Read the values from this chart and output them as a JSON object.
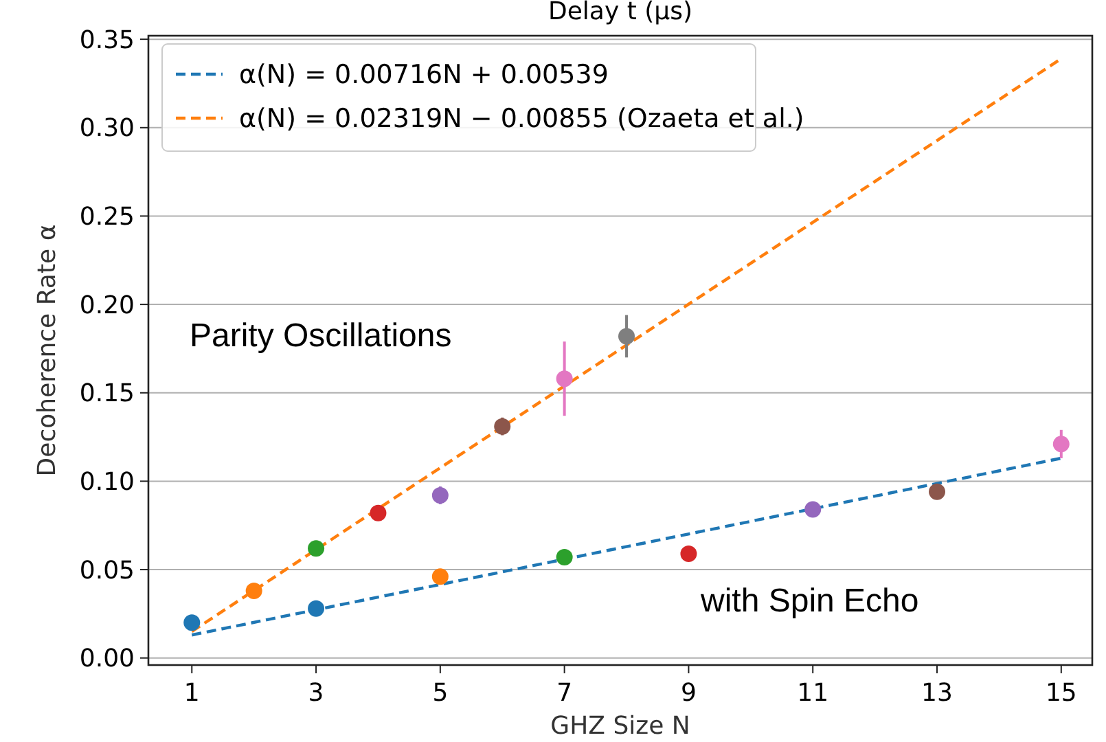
{
  "chart_data": {
    "type": "scatter",
    "xlabel": "GHZ Size N",
    "ylabel": "Decoherence Rate α",
    "annotations": [
      "Delay t (μs)",
      "Parity Oscillations",
      "with Spin Echo"
    ],
    "xlim": [
      0.3,
      15.5
    ],
    "xticks": [
      1,
      3,
      5,
      7,
      9,
      11,
      13,
      15
    ],
    "ylim": [
      -0.004,
      0.352
    ],
    "yticks": [
      {
        "value": 0,
        "label": "0.00"
      },
      {
        "value": 0.05,
        "label": "0.05"
      },
      {
        "value": 0.1,
        "label": "0.10"
      },
      {
        "value": 0.15,
        "label": "0.15"
      },
      {
        "value": 0.2,
        "label": "0.20"
      },
      {
        "value": 0.25,
        "label": "0.25"
      },
      {
        "value": 0.3,
        "label": "0.30"
      },
      {
        "value": 0.35,
        "label": "0.35"
      }
    ],
    "grid": "y",
    "legend": "top left",
    "marker": "circle",
    "series": [
      {
        "type": "line",
        "name": "α(N) = 0.00716N + 0.00539",
        "color": "#1f77b4",
        "x": [
          1,
          15
        ],
        "values": [
          0.013,
          0.113
        ],
        "line_style": "dashed",
        "marker": "none"
      },
      {
        "type": "line",
        "name": "α(N) = 0.02319N − 0.00855 (Ozaeta et al.)",
        "color": "#ff7f0e",
        "x": [
          1,
          15
        ],
        "values": [
          0.015,
          0.339
        ],
        "line_style": "dashed",
        "marker": "none"
      },
      {
        "x": [
          1,
          2,
          3,
          4,
          5,
          6,
          7,
          8
        ],
        "values": [
          0.02,
          0.038,
          0.062,
          0.082,
          0.092,
          0.131,
          0.158,
          0.182
        ],
        "errors": [
          null,
          null,
          null,
          null,
          0.005,
          0.005,
          0.021,
          0.012
        ],
        "colors": [
          "#1f77b4",
          "#ff7f0e",
          "#2ca02c",
          "#d62728",
          "#9467bd",
          "#8c564b",
          "#e377c2",
          "#7f7f7f"
        ]
      },
      {
        "x": [
          3,
          5,
          7,
          9,
          11,
          13,
          15
        ],
        "values": [
          0.028,
          0.046,
          0.057,
          0.059,
          0.084,
          0.094,
          0.121
        ],
        "errors": [
          null,
          null,
          null,
          null,
          null,
          null,
          0.008
        ],
        "colors": [
          "#1f77b4",
          "#ff7f0e",
          "#2ca02c",
          "#d62728",
          "#9467bd",
          "#8c564b",
          "#e377c2"
        ]
      }
    ]
  }
}
